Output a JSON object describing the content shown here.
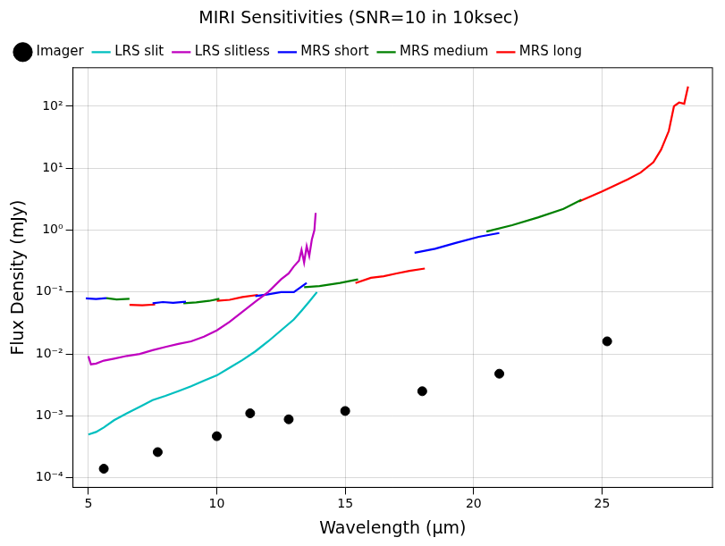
{
  "chart_data": {
    "type": "line",
    "title": "MIRI Sensitivities (SNR=10 in 10ksec)",
    "x_label": "Wavelength (μm)",
    "y_label": "Flux Density (mJy)",
    "log": "y",
    "grid": true,
    "legend": "upper left",
    "xlim": [
      4.4,
      29.3
    ],
    "xticks": [
      5,
      10,
      15,
      20,
      25
    ],
    "ylim": [
      7e-05,
      420
    ],
    "yticks": [
      {
        "value": 0.0001,
        "label": "10⁻⁴"
      },
      {
        "value": 0.001,
        "label": "10⁻³"
      },
      {
        "value": 0.01,
        "label": "10⁻²"
      },
      {
        "value": 0.1,
        "label": "10⁻¹"
      },
      {
        "value": 1,
        "label": "10⁰"
      },
      {
        "value": 10,
        "label": "10¹"
      },
      {
        "value": 100,
        "label": "10²"
      }
    ],
    "series": [
      {
        "name": "Imager",
        "type": "scatter",
        "marker": "circle",
        "color": "#000000",
        "x": [
          5.6,
          7.7,
          10.0,
          11.3,
          12.8,
          15.0,
          18.0,
          21.0,
          25.2
        ],
        "values": [
          0.00014,
          0.00026,
          0.00047,
          0.0011,
          0.00088,
          0.0012,
          0.0025,
          0.0048,
          0.016
        ]
      },
      {
        "name": "LRS slit",
        "type": "line",
        "color": "#00bfbf",
        "x": [
          5.0,
          5.3,
          5.6,
          6.0,
          6.5,
          7.0,
          7.5,
          8.0,
          8.5,
          9.0,
          9.5,
          10.0,
          10.5,
          11.0,
          11.5,
          12.0,
          12.5,
          13.0,
          13.3,
          13.6,
          13.9
        ],
        "values": [
          0.0005,
          0.00055,
          0.00065,
          0.00085,
          0.0011,
          0.0014,
          0.0018,
          0.0021,
          0.0025,
          0.003,
          0.0037,
          0.0045,
          0.006,
          0.008,
          0.011,
          0.016,
          0.024,
          0.036,
          0.05,
          0.07,
          0.1
        ]
      },
      {
        "name": "LRS slitless",
        "type": "line",
        "color": "#bf00bf",
        "x": [
          5.0,
          5.1,
          5.3,
          5.6,
          6.0,
          6.5,
          7.0,
          7.5,
          8.0,
          8.5,
          9.0,
          9.5,
          10.0,
          10.5,
          11.0,
          11.5,
          12.0,
          12.5,
          12.8,
          13.0,
          13.2,
          13.3,
          13.4,
          13.5,
          13.6,
          13.7,
          13.8,
          13.85
        ],
        "values": [
          0.0092,
          0.0068,
          0.007,
          0.0078,
          0.0084,
          0.0093,
          0.01,
          0.0115,
          0.013,
          0.0145,
          0.016,
          0.019,
          0.024,
          0.033,
          0.048,
          0.07,
          0.1,
          0.16,
          0.2,
          0.26,
          0.32,
          0.48,
          0.3,
          0.55,
          0.38,
          0.7,
          1.0,
          1.9
        ]
      },
      {
        "name": "MRS short",
        "type": "line",
        "color": "#0000ff",
        "x": [
          4.9,
          5.3,
          5.7,
          null,
          7.5,
          7.9,
          8.3,
          8.8,
          null,
          11.5,
          12.0,
          12.5,
          13.0,
          13.5,
          null,
          17.7,
          18.5,
          19.3,
          20.2,
          21.0
        ],
        "values": [
          0.079,
          0.077,
          0.08,
          null,
          0.066,
          0.069,
          0.067,
          0.07,
          null,
          0.086,
          0.092,
          0.1,
          0.1,
          0.14,
          null,
          0.43,
          0.5,
          0.62,
          0.78,
          0.9
        ]
      },
      {
        "name": "MRS medium",
        "type": "line",
        "color": "#008000",
        "x": [
          5.7,
          6.1,
          6.6,
          null,
          8.7,
          9.2,
          9.7,
          10.1,
          null,
          13.4,
          14.0,
          14.8,
          15.5,
          null,
          20.5,
          21.5,
          22.5,
          23.5,
          24.2
        ],
        "values": [
          0.08,
          0.076,
          0.078,
          null,
          0.066,
          0.068,
          0.072,
          0.078,
          null,
          0.12,
          0.125,
          0.14,
          0.16,
          null,
          0.95,
          1.2,
          1.6,
          2.2,
          3.1
        ]
      },
      {
        "name": "MRS long",
        "type": "line",
        "color": "#ff0000",
        "x": [
          6.6,
          7.1,
          7.6,
          null,
          10.0,
          10.5,
          11.0,
          11.6,
          null,
          15.4,
          16.0,
          16.5,
          17.0,
          17.5,
          18.1,
          null,
          24.1,
          25.0,
          26.0,
          26.5,
          27.0,
          27.3,
          27.6,
          27.8,
          28.0,
          28.2,
          28.35
        ],
        "values": [
          0.062,
          0.061,
          0.063,
          null,
          0.072,
          0.075,
          0.083,
          0.09,
          null,
          0.14,
          0.17,
          0.18,
          0.2,
          0.22,
          0.24,
          null,
          2.9,
          4.2,
          6.6,
          8.5,
          12.5,
          20,
          40,
          100,
          115,
          110,
          210
        ]
      }
    ]
  }
}
